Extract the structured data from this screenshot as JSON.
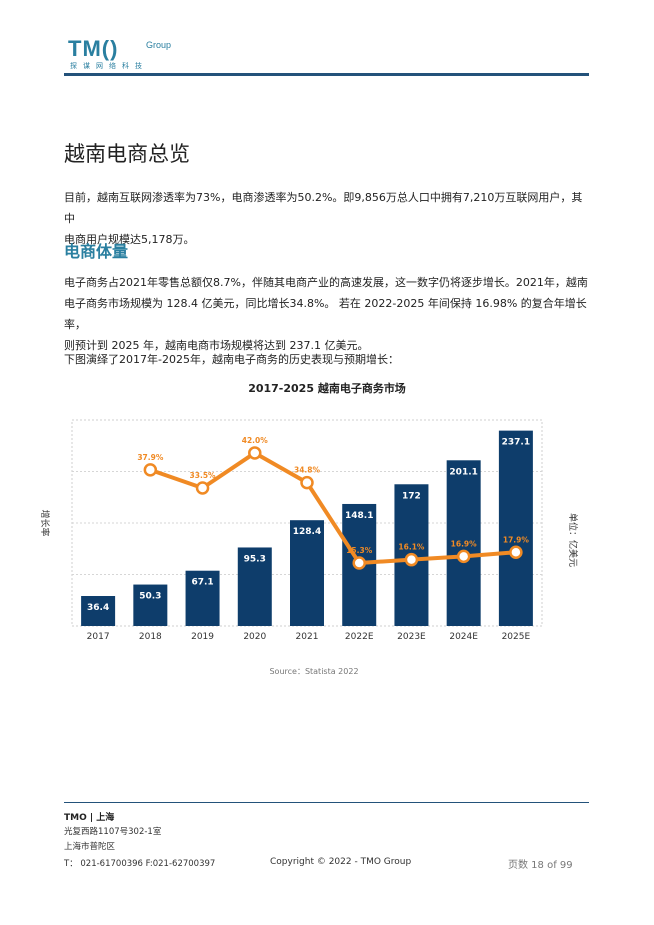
{
  "logo": {
    "main": "TM()",
    "group": "Group",
    "sub": "探谋网络科技"
  },
  "heading": "越南电商总览",
  "intro": [
    "目前，越南互联网渗透率为73%，电商渗透率为50.2%。即9,856万总人口中拥有7,210万互联网用户，其中",
    "电商用户规模达5,178万。"
  ],
  "section_heading": "电商体量",
  "body": [
    "电子商务占2021年零售总额仅8.7%，伴随其电商产业的高速发展，这一数字仍将逐步增长。2021年，越南",
    "电子商务市场规模为 128.4 亿美元，同比增长34.8%。 若在 2022-2025 年间保持 16.98% 的复合年增长率，",
    "则预计到 2025 年，越南电商市场规模将达到 237.1 亿美元。"
  ],
  "chart_intro": "下图演绎了2017年-2025年，越南电子商务的历史表现与预期增长：",
  "chart_data": {
    "type": "bar",
    "title": "2017-2025 越南电子商务市场",
    "categories": [
      "2017",
      "2018",
      "2019",
      "2020",
      "2021",
      "2022E",
      "2023E",
      "2024E",
      "2025E"
    ],
    "series": [
      {
        "values": [
          36.4,
          50.3,
          67.1,
          95.3,
          128.4,
          148.1,
          172,
          201.1,
          237.1
        ],
        "labels": [
          "36.4",
          "50.3",
          "67.1",
          "95.3",
          "128.4",
          "148.1",
          "172",
          "201.1",
          "237.1"
        ]
      },
      {
        "type": "line",
        "values": [
          null,
          37.9,
          33.5,
          42.0,
          34.8,
          15.3,
          16.1,
          16.9,
          17.9
        ],
        "labels": [
          "",
          "37.9%",
          "33.5%",
          "42.0%",
          "34.8%",
          "15.3%",
          "16.1%",
          "16.9%",
          "17.9%"
        ]
      }
    ],
    "ylabel_left": "增长率",
    "ylabel_right": "单位：亿美元",
    "grid": true,
    "colors": {
      "bar": "#0e3d6b",
      "line": "#f08a24"
    }
  },
  "source": "Source：Statista 2022",
  "footer": {
    "company": "TMO | 上海",
    "address1": "光复西路1107号302-1室",
    "address2": "上海市普陀区",
    "phone": "T：  021-61700396 F:021-62700397",
    "copyright": "Copyright © 2022 - TMO Group",
    "page": "页数 18 of 99"
  }
}
